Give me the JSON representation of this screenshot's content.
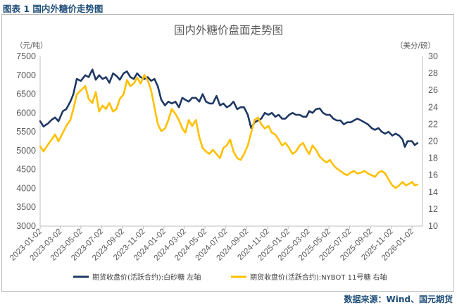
{
  "caption": "图表 1 国内外糖价走势图",
  "source": "数据来源：Wind、国元期货",
  "colors": {
    "series1": "#1f3864",
    "series2": "#ffc000",
    "caption": "#1f4e79"
  },
  "chart_data": {
    "type": "line",
    "title": "国内外糖价盘面走势图",
    "y_left": {
      "unit": "（元/吨）",
      "min": 3000,
      "max": 7500,
      "step": 500,
      "ticks": [
        "3000",
        "3500",
        "4000",
        "4500",
        "5000",
        "5500",
        "6000",
        "6500",
        "7000",
        "7500"
      ]
    },
    "y_right": {
      "unit": "（美分/磅）",
      "min": 10,
      "max": 30,
      "step": 2,
      "ticks": [
        "10",
        "12",
        "14",
        "16",
        "18",
        "20",
        "22",
        "24",
        "26",
        "28",
        "30"
      ]
    },
    "x_ticks": [
      "2023-01-02",
      "2023-03-02",
      "2023-05-02",
      "2023-07-02",
      "2023-09-02",
      "2023-11-02",
      "2024-01-02",
      "2024-03-02",
      "2024-05-02",
      "2024-07-02",
      "2024-09-02",
      "2024-11-02",
      "2025-01-02",
      "2025-03-02",
      "2025-05-02",
      "2025-07-02",
      "2025-09-02",
      "2025-11-02",
      "2026-01-02"
    ],
    "grid": false,
    "legend_placement": "bottom",
    "series": [
      {
        "name": "期货收盘价(活跃合约):白砂糖 左轴",
        "axis": "left",
        "points": [
          [
            "2023-01-02",
            5780
          ],
          [
            "2023-01-12",
            5640
          ],
          [
            "2023-01-25",
            5720
          ],
          [
            "2023-02-05",
            5820
          ],
          [
            "2023-02-15",
            5880
          ],
          [
            "2023-02-25",
            5780
          ],
          [
            "2023-03-10",
            6050
          ],
          [
            "2023-03-20",
            6100
          ],
          [
            "2023-04-01",
            6300
          ],
          [
            "2023-04-10",
            6500
          ],
          [
            "2023-04-20",
            6900
          ],
          [
            "2023-05-02",
            6850
          ],
          [
            "2023-05-15",
            7000
          ],
          [
            "2023-05-25",
            6950
          ],
          [
            "2023-06-05",
            7150
          ],
          [
            "2023-06-15",
            6880
          ],
          [
            "2023-06-25",
            7000
          ],
          [
            "2023-07-05",
            6900
          ],
          [
            "2023-07-15",
            6950
          ],
          [
            "2023-07-25",
            6800
          ],
          [
            "2023-08-05",
            7050
          ],
          [
            "2023-08-15",
            6980
          ],
          [
            "2023-08-25",
            6880
          ],
          [
            "2023-09-05",
            7050
          ],
          [
            "2023-09-15",
            7100
          ],
          [
            "2023-09-25",
            6950
          ],
          [
            "2023-10-05",
            6900
          ],
          [
            "2023-10-15",
            7050
          ],
          [
            "2023-10-25",
            6950
          ],
          [
            "2023-11-05",
            6900
          ],
          [
            "2023-11-15",
            6950
          ],
          [
            "2023-11-25",
            6850
          ],
          [
            "2023-12-05",
            6900
          ],
          [
            "2023-12-15",
            6700
          ],
          [
            "2023-12-25",
            6350
          ],
          [
            "2024-01-05",
            6200
          ],
          [
            "2024-01-15",
            6300
          ],
          [
            "2024-01-25",
            6250
          ],
          [
            "2024-02-05",
            6300
          ],
          [
            "2024-02-15",
            6150
          ],
          [
            "2024-02-25",
            6400
          ],
          [
            "2024-03-05",
            6350
          ],
          [
            "2024-03-15",
            6300
          ],
          [
            "2024-03-25",
            6400
          ],
          [
            "2024-04-05",
            6400
          ],
          [
            "2024-04-15",
            6300
          ],
          [
            "2024-04-25",
            6500
          ],
          [
            "2024-05-05",
            6300
          ],
          [
            "2024-05-15",
            6250
          ],
          [
            "2024-05-25",
            6250
          ],
          [
            "2024-06-05",
            6450
          ],
          [
            "2024-06-15",
            6200
          ],
          [
            "2024-06-25",
            6250
          ],
          [
            "2024-07-05",
            6150
          ],
          [
            "2024-07-15",
            6200
          ],
          [
            "2024-07-25",
            6300
          ],
          [
            "2024-08-05",
            6100
          ],
          [
            "2024-08-15",
            6150
          ],
          [
            "2024-08-25",
            6150
          ],
          [
            "2024-09-05",
            5950
          ],
          [
            "2024-09-15",
            5600
          ],
          [
            "2024-09-25",
            5750
          ],
          [
            "2024-10-05",
            5800
          ],
          [
            "2024-10-15",
            5850
          ],
          [
            "2024-10-25",
            6000
          ],
          [
            "2024-11-05",
            5950
          ],
          [
            "2024-11-15",
            6000
          ],
          [
            "2024-11-25",
            5900
          ],
          [
            "2024-12-05",
            5950
          ],
          [
            "2024-12-15",
            5850
          ],
          [
            "2024-12-25",
            5850
          ],
          [
            "2025-01-05",
            5950
          ],
          [
            "2025-01-15",
            6000
          ],
          [
            "2025-01-25",
            5950
          ],
          [
            "2025-02-05",
            5950
          ],
          [
            "2025-02-15",
            5900
          ],
          [
            "2025-02-25",
            5900
          ],
          [
            "2025-03-05",
            6050
          ],
          [
            "2025-03-15",
            6000
          ],
          [
            "2025-03-25",
            6100
          ],
          [
            "2025-04-05",
            6120
          ],
          [
            "2025-04-15",
            6000
          ],
          [
            "2025-04-25",
            5950
          ],
          [
            "2025-05-05",
            5950
          ],
          [
            "2025-05-15",
            5850
          ],
          [
            "2025-05-25",
            5800
          ],
          [
            "2025-06-05",
            5800
          ],
          [
            "2025-06-15",
            5700
          ],
          [
            "2025-06-25",
            5750
          ],
          [
            "2025-07-05",
            5750
          ],
          [
            "2025-07-15",
            5800
          ],
          [
            "2025-07-25",
            5850
          ],
          [
            "2025-08-05",
            5800
          ],
          [
            "2025-08-15",
            5750
          ],
          [
            "2025-08-25",
            5700
          ],
          [
            "2025-09-05",
            5600
          ],
          [
            "2025-09-15",
            5550
          ],
          [
            "2025-09-25",
            5600
          ],
          [
            "2025-10-05",
            5500
          ],
          [
            "2025-10-15",
            5450
          ],
          [
            "2025-10-25",
            5500
          ],
          [
            "2025-11-05",
            5400
          ],
          [
            "2025-11-15",
            5450
          ],
          [
            "2025-11-25",
            5400
          ],
          [
            "2025-12-05",
            5300
          ],
          [
            "2025-12-12",
            5100
          ],
          [
            "2025-12-20",
            5250
          ],
          [
            "2026-01-02",
            5250
          ],
          [
            "2026-01-10",
            5150
          ],
          [
            "2026-01-18",
            5200
          ]
        ]
      },
      {
        "name": "期货收盘价(活跃合约):NYBOT 11号糖 右轴",
        "axis": "right",
        "points": [
          [
            "2023-01-02",
            19.4
          ],
          [
            "2023-01-12",
            18.8
          ],
          [
            "2023-01-25",
            19.6
          ],
          [
            "2023-02-05",
            20.2
          ],
          [
            "2023-02-15",
            20.8
          ],
          [
            "2023-02-25",
            20.0
          ],
          [
            "2023-03-10",
            21.0
          ],
          [
            "2023-03-20",
            21.8
          ],
          [
            "2023-04-01",
            22.5
          ],
          [
            "2023-04-10",
            23.8
          ],
          [
            "2023-04-20",
            25.5
          ],
          [
            "2023-05-02",
            26.0
          ],
          [
            "2023-05-15",
            26.5
          ],
          [
            "2023-05-25",
            25.0
          ],
          [
            "2023-06-05",
            24.5
          ],
          [
            "2023-06-15",
            25.8
          ],
          [
            "2023-06-25",
            23.5
          ],
          [
            "2023-07-05",
            24.2
          ],
          [
            "2023-07-15",
            23.8
          ],
          [
            "2023-07-25",
            24.5
          ],
          [
            "2023-08-05",
            23.5
          ],
          [
            "2023-08-15",
            23.8
          ],
          [
            "2023-08-25",
            25.0
          ],
          [
            "2023-09-05",
            25.5
          ],
          [
            "2023-09-15",
            27.2
          ],
          [
            "2023-09-25",
            26.5
          ],
          [
            "2023-10-05",
            26.8
          ],
          [
            "2023-10-15",
            27.5
          ],
          [
            "2023-10-25",
            26.8
          ],
          [
            "2023-11-05",
            27.8
          ],
          [
            "2023-11-15",
            27.2
          ],
          [
            "2023-11-25",
            26.0
          ],
          [
            "2023-12-05",
            24.0
          ],
          [
            "2023-12-15",
            22.0
          ],
          [
            "2023-12-25",
            21.2
          ],
          [
            "2024-01-05",
            21.5
          ],
          [
            "2024-01-15",
            22.5
          ],
          [
            "2024-01-25",
            23.8
          ],
          [
            "2024-02-05",
            23.2
          ],
          [
            "2024-02-15",
            22.5
          ],
          [
            "2024-02-25",
            21.5
          ],
          [
            "2024-03-05",
            21.0
          ],
          [
            "2024-03-15",
            22.5
          ],
          [
            "2024-03-25",
            21.8
          ],
          [
            "2024-04-05",
            22.5
          ],
          [
            "2024-04-15",
            20.5
          ],
          [
            "2024-04-25",
            19.2
          ],
          [
            "2024-05-05",
            18.8
          ],
          [
            "2024-05-15",
            18.5
          ],
          [
            "2024-05-25",
            19.0
          ],
          [
            "2024-06-05",
            18.5
          ],
          [
            "2024-06-15",
            18.0
          ],
          [
            "2024-06-25",
            19.2
          ],
          [
            "2024-07-05",
            19.5
          ],
          [
            "2024-07-15",
            20.2
          ],
          [
            "2024-07-25",
            18.8
          ],
          [
            "2024-08-05",
            18.0
          ],
          [
            "2024-08-15",
            17.8
          ],
          [
            "2024-08-25",
            18.5
          ],
          [
            "2024-09-05",
            19.5
          ],
          [
            "2024-09-15",
            21.0
          ],
          [
            "2024-09-25",
            22.5
          ],
          [
            "2024-10-05",
            22.8
          ],
          [
            "2024-10-15",
            22.0
          ],
          [
            "2024-10-25",
            21.5
          ],
          [
            "2024-11-05",
            21.8
          ],
          [
            "2024-11-15",
            21.0
          ],
          [
            "2024-11-25",
            20.8
          ],
          [
            "2024-12-05",
            20.2
          ],
          [
            "2024-12-15",
            19.5
          ],
          [
            "2024-12-25",
            19.8
          ],
          [
            "2025-01-05",
            19.2
          ],
          [
            "2025-01-15",
            18.5
          ],
          [
            "2025-01-25",
            18.8
          ],
          [
            "2025-02-05",
            19.5
          ],
          [
            "2025-02-15",
            19.8
          ],
          [
            "2025-02-25",
            19.0
          ],
          [
            "2025-03-05",
            18.5
          ],
          [
            "2025-03-15",
            19.5
          ],
          [
            "2025-03-25",
            19.0
          ],
          [
            "2025-04-05",
            18.2
          ],
          [
            "2025-04-15",
            17.8
          ],
          [
            "2025-04-25",
            17.5
          ],
          [
            "2025-05-05",
            17.8
          ],
          [
            "2025-05-15",
            17.2
          ],
          [
            "2025-05-25",
            16.8
          ],
          [
            "2025-06-05",
            16.5
          ],
          [
            "2025-06-15",
            16.2
          ],
          [
            "2025-06-25",
            16.0
          ],
          [
            "2025-07-05",
            16.3
          ],
          [
            "2025-07-15",
            16.5
          ],
          [
            "2025-07-25",
            16.2
          ],
          [
            "2025-08-05",
            16.3
          ],
          [
            "2025-08-15",
            16.5
          ],
          [
            "2025-08-25",
            16.2
          ],
          [
            "2025-09-05",
            16.0
          ],
          [
            "2025-09-15",
            15.8
          ],
          [
            "2025-09-25",
            16.3
          ],
          [
            "2025-10-05",
            16.5
          ],
          [
            "2025-10-15",
            16.2
          ],
          [
            "2025-10-25",
            15.5
          ],
          [
            "2025-11-05",
            14.8
          ],
          [
            "2025-11-15",
            14.5
          ],
          [
            "2025-11-25",
            14.8
          ],
          [
            "2025-12-05",
            15.2
          ],
          [
            "2025-12-15",
            14.8
          ],
          [
            "2025-12-25",
            15.0
          ],
          [
            "2026-01-02",
            15.2
          ],
          [
            "2026-01-10",
            14.8
          ],
          [
            "2026-01-18",
            14.9
          ]
        ]
      }
    ]
  }
}
